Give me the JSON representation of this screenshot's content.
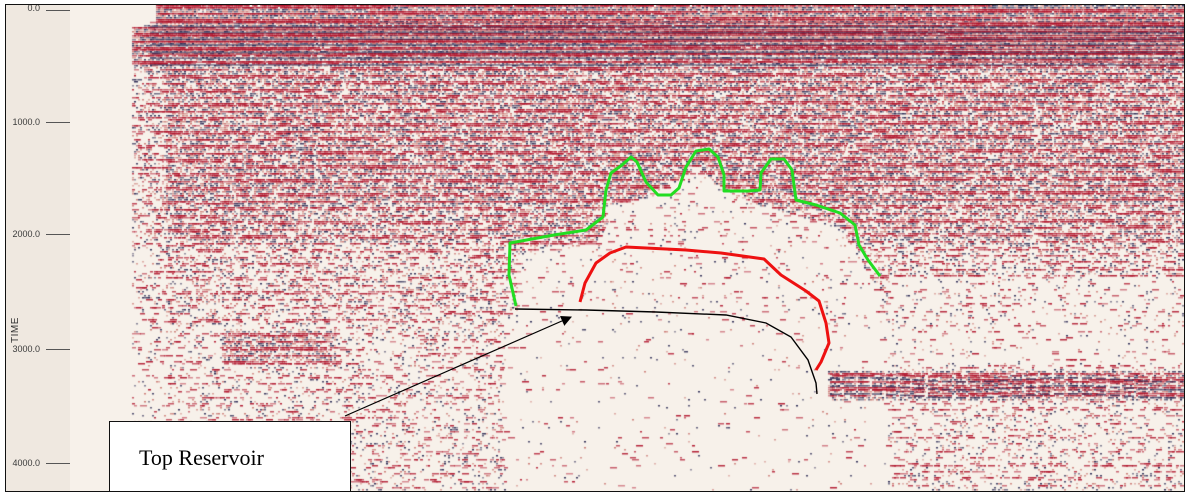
{
  "axis": {
    "title": "TIME",
    "ticks": [
      "0.0",
      "1000.0",
      "2000.0",
      "3000.0",
      "4000.0"
    ],
    "tick_values": [
      0,
      1000,
      2000,
      3000,
      4000
    ]
  },
  "annotation": {
    "label": "Top Reservoir"
  },
  "colors": {
    "background": "#f7f1ea",
    "seismic_peak": "#b0122a",
    "seismic_trough": "#23224e",
    "green_horizon": "#22dd22",
    "red_horizon": "#ee1111",
    "black_horizon": "#000000"
  }
}
